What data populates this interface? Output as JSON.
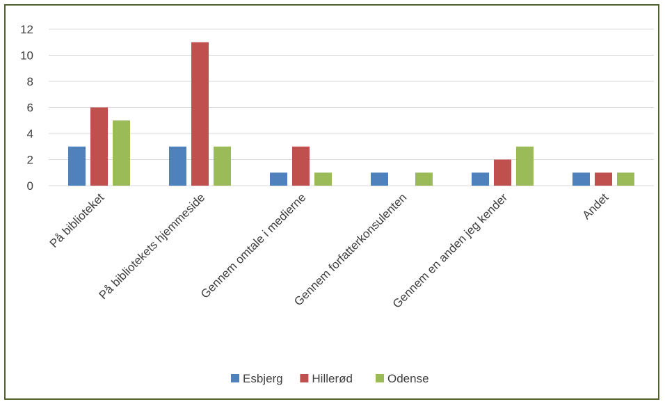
{
  "chart_data": {
    "type": "bar",
    "title": "",
    "xlabel": "",
    "ylabel": "",
    "categories": [
      "På biblioteket",
      "På bibliotekets hjemmeside",
      "Gennem omtale i medierne",
      "Gennem forfatterkonsulenten",
      "Gennem en anden jeg kender",
      "Andet"
    ],
    "series": [
      {
        "name": "Esbjerg",
        "color": "#4f81bd",
        "values": [
          3,
          3,
          1,
          1,
          1,
          1
        ]
      },
      {
        "name": "Hillerød",
        "color": "#c0504d",
        "values": [
          6,
          11,
          3,
          0,
          2,
          1
        ]
      },
      {
        "name": "Odense",
        "color": "#9bbb59",
        "values": [
          5,
          3,
          1,
          1,
          3,
          1
        ]
      }
    ],
    "ylim": [
      0,
      12
    ],
    "yticks": [
      0,
      2,
      4,
      6,
      8,
      10,
      12
    ],
    "grid": true,
    "legend_position": "bottom"
  },
  "colors": {
    "border": "#4f6228",
    "grid": "#d9d9d9",
    "text": "#404040"
  }
}
